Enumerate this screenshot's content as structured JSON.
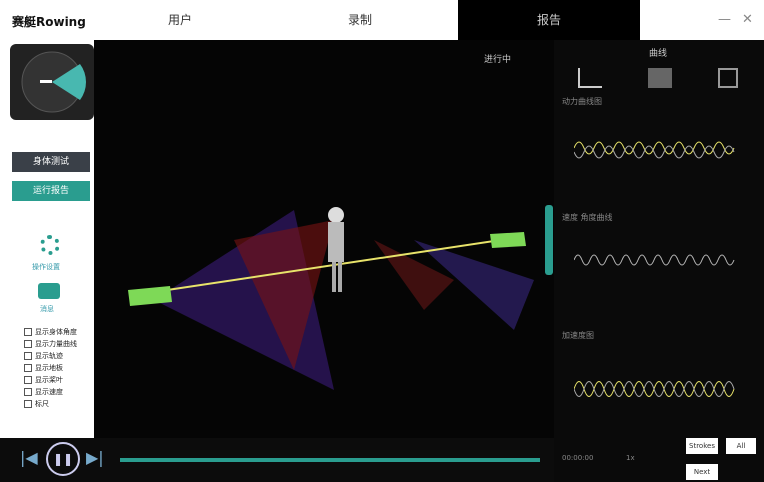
{
  "app": {
    "logo": "赛艇Rowing"
  },
  "tabs": [
    {
      "label": "用户"
    },
    {
      "label": "录制"
    },
    {
      "label": "报告"
    }
  ],
  "left": {
    "primary_button": "身体测试",
    "secondary_button": "运行报告",
    "settings_label": "操作设置",
    "chat_label": "消息",
    "checkboxes": [
      "显示身体角度",
      "显示力量曲线",
      "显示轨迹",
      "显示地板",
      "显示桨叶",
      "显示速度",
      "标尺"
    ]
  },
  "scene": {
    "toggle_label": "进行中"
  },
  "right": {
    "heading": "曲线",
    "chart1_title": "动力曲线图",
    "chart2_title": "速度 角度曲线",
    "chart3_title": "加速度图",
    "time": "00:00:00",
    "zoom": "1x",
    "buttons": {
      "stroke": "Strokes",
      "all": "All",
      "next": "Next"
    }
  },
  "bottom": {
    "prev_icon": "skip-back-icon",
    "play_icon": "pause-icon",
    "next_icon": "skip-forward-icon"
  },
  "colors": {
    "accent": "#2a9d8f",
    "green": "#7ed957",
    "yellow": "#e8e36a",
    "red": "#c0392b"
  }
}
